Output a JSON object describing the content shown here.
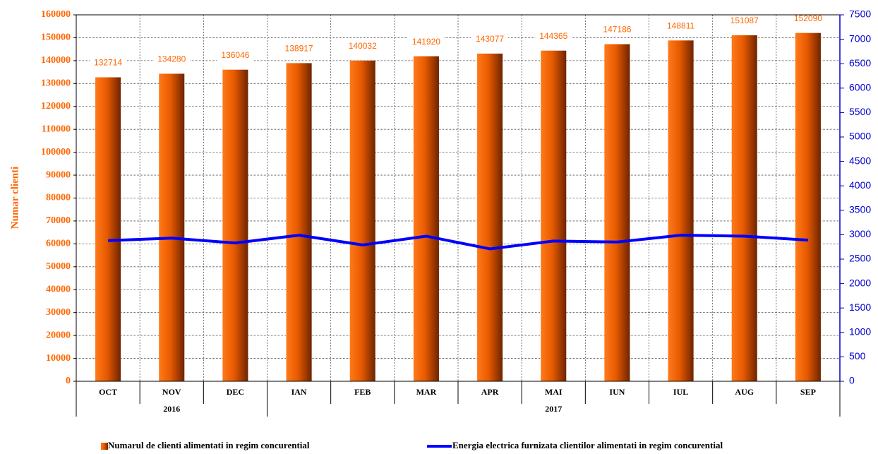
{
  "chart_data": {
    "type": "bar_line",
    "y_label": "Numar clienti",
    "categories": [
      "OCT",
      "NOV",
      "DEC",
      "IAN",
      "FEB",
      "MAR",
      "APR",
      "MAI",
      "IUN",
      "IUL",
      "AUG",
      "SEP"
    ],
    "groups": [
      "2016",
      null,
      null,
      "2017",
      null,
      null,
      null,
      null,
      null,
      null,
      null,
      null
    ],
    "series": [
      {
        "name": "Numarul de clienti alimentati in regim concurential",
        "type": "bar",
        "color": "#ff6600",
        "values": [
          132714,
          134280,
          136046,
          138917,
          140032,
          141920,
          143077,
          144365,
          147186,
          148811,
          151087,
          152090
        ]
      },
      {
        "name": "Energia electrica furnizata clientilor alimentati in regim concurential",
        "type": "line",
        "color": "#0000ff",
        "axis": "y2",
        "values": [
          2880,
          2930,
          2830,
          2990,
          2790,
          2970,
          2710,
          2870,
          2850,
          2990,
          2970,
          2890
        ]
      }
    ],
    "ylim": [
      0,
      160000
    ],
    "yticks": [
      0,
      10000,
      20000,
      30000,
      40000,
      50000,
      60000,
      70000,
      80000,
      90000,
      100000,
      110000,
      120000,
      130000,
      140000,
      150000,
      160000
    ],
    "y2lim": [
      0,
      7500
    ],
    "y2ticks": [
      0,
      500,
      1000,
      1500,
      2000,
      2500,
      3000,
      3500,
      4000,
      4500,
      5000,
      5500,
      6000,
      6500,
      7000,
      7500
    ],
    "grid": true,
    "legend": "bottom"
  }
}
